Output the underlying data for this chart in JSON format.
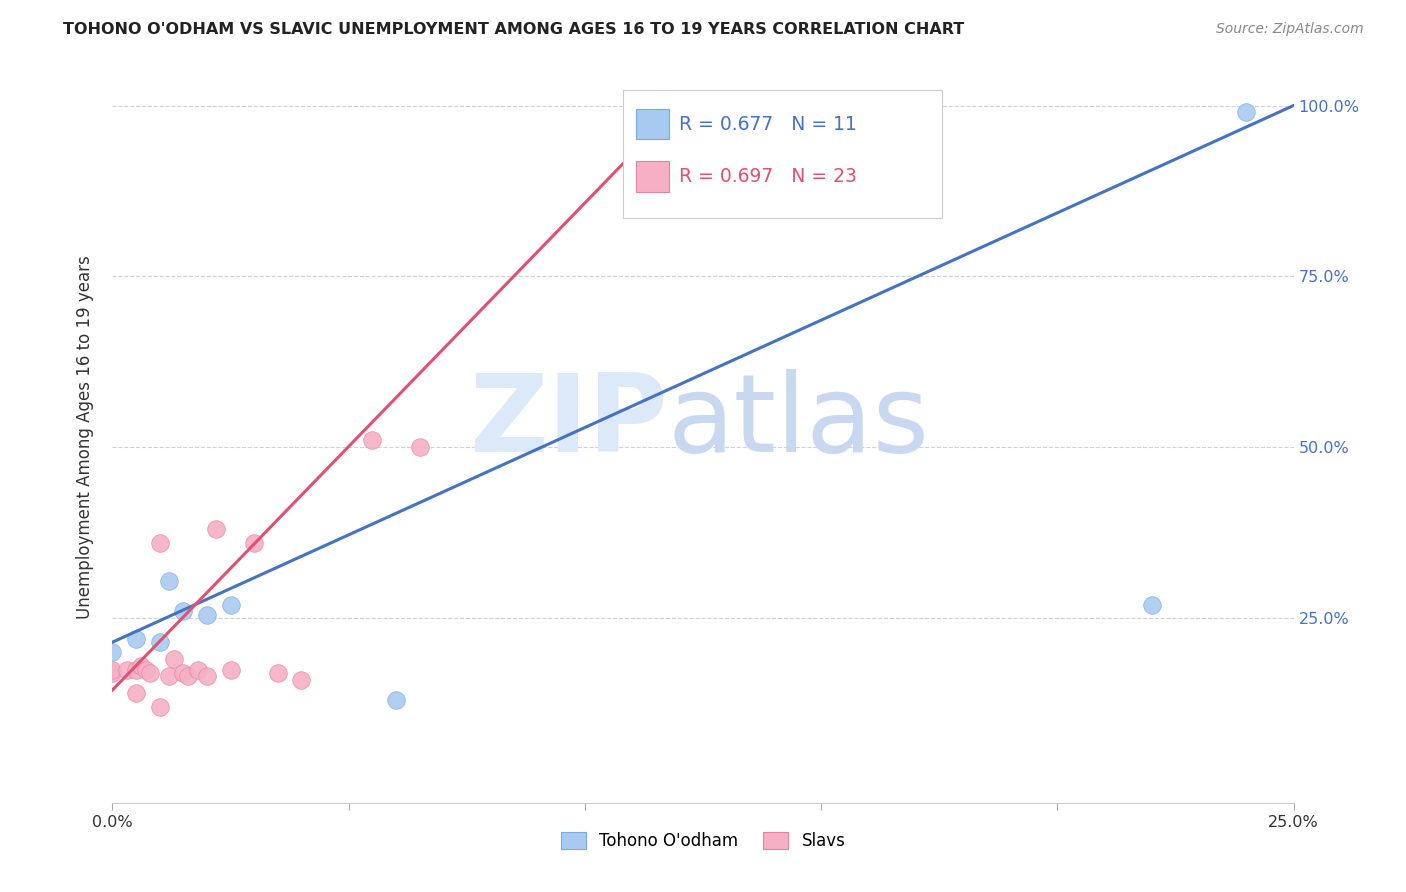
{
  "title": "TOHONO O'ODHAM VS SLAVIC UNEMPLOYMENT AMONG AGES 16 TO 19 YEARS CORRELATION CHART",
  "source": "Source: ZipAtlas.com",
  "ylabel": "Unemployment Among Ages 16 to 19 years",
  "xlim": [
    0.0,
    0.25
  ],
  "ylim": [
    -0.02,
    1.05
  ],
  "xticks": [
    0.0,
    0.05,
    0.1,
    0.15,
    0.2,
    0.25
  ],
  "xticklabels": [
    "0.0%",
    "",
    "",
    "",
    "",
    "25.0%"
  ],
  "yticks": [
    0.25,
    0.5,
    0.75,
    1.0
  ],
  "yticklabels": [
    "25.0%",
    "50.0%",
    "75.0%",
    "100.0%"
  ],
  "blue_label": "Tohono O'odham",
  "pink_label": "Slavs",
  "blue_R": 0.677,
  "blue_N": 11,
  "pink_R": 0.697,
  "pink_N": 23,
  "blue_color": "#a8caf0",
  "pink_color": "#f5b0c5",
  "blue_edge_color": "#7aaade",
  "pink_edge_color": "#e880a0",
  "blue_line_color": "#4472c4",
  "pink_line_color": "#e05070",
  "tick_color": "#4472c4",
  "grid_color": "#d0d0d0",
  "blue_scatter_x": [
    0.0,
    0.005,
    0.01,
    0.012,
    0.015,
    0.02,
    0.025,
    0.06,
    0.14,
    0.22,
    0.24
  ],
  "blue_scatter_y": [
    0.2,
    0.22,
    0.215,
    0.305,
    0.26,
    0.255,
    0.27,
    0.13,
    0.99,
    0.27,
    0.99
  ],
  "pink_scatter_x": [
    0.0,
    0.0,
    0.003,
    0.005,
    0.006,
    0.007,
    0.008,
    0.01,
    0.012,
    0.013,
    0.015,
    0.016,
    0.018,
    0.02,
    0.022,
    0.025,
    0.03,
    0.035,
    0.04,
    0.055,
    0.065,
    0.005,
    0.01
  ],
  "pink_scatter_y": [
    0.17,
    0.175,
    0.175,
    0.175,
    0.18,
    0.175,
    0.17,
    0.36,
    0.165,
    0.19,
    0.17,
    0.165,
    0.175,
    0.165,
    0.38,
    0.175,
    0.36,
    0.17,
    0.16,
    0.51,
    0.5,
    0.14,
    0.12
  ],
  "blue_trend_x": [
    0.0,
    0.25
  ],
  "blue_trend_y": [
    0.215,
    1.0
  ],
  "pink_trend_x": [
    0.0,
    0.12
  ],
  "pink_trend_y": [
    0.145,
    1.0
  ]
}
